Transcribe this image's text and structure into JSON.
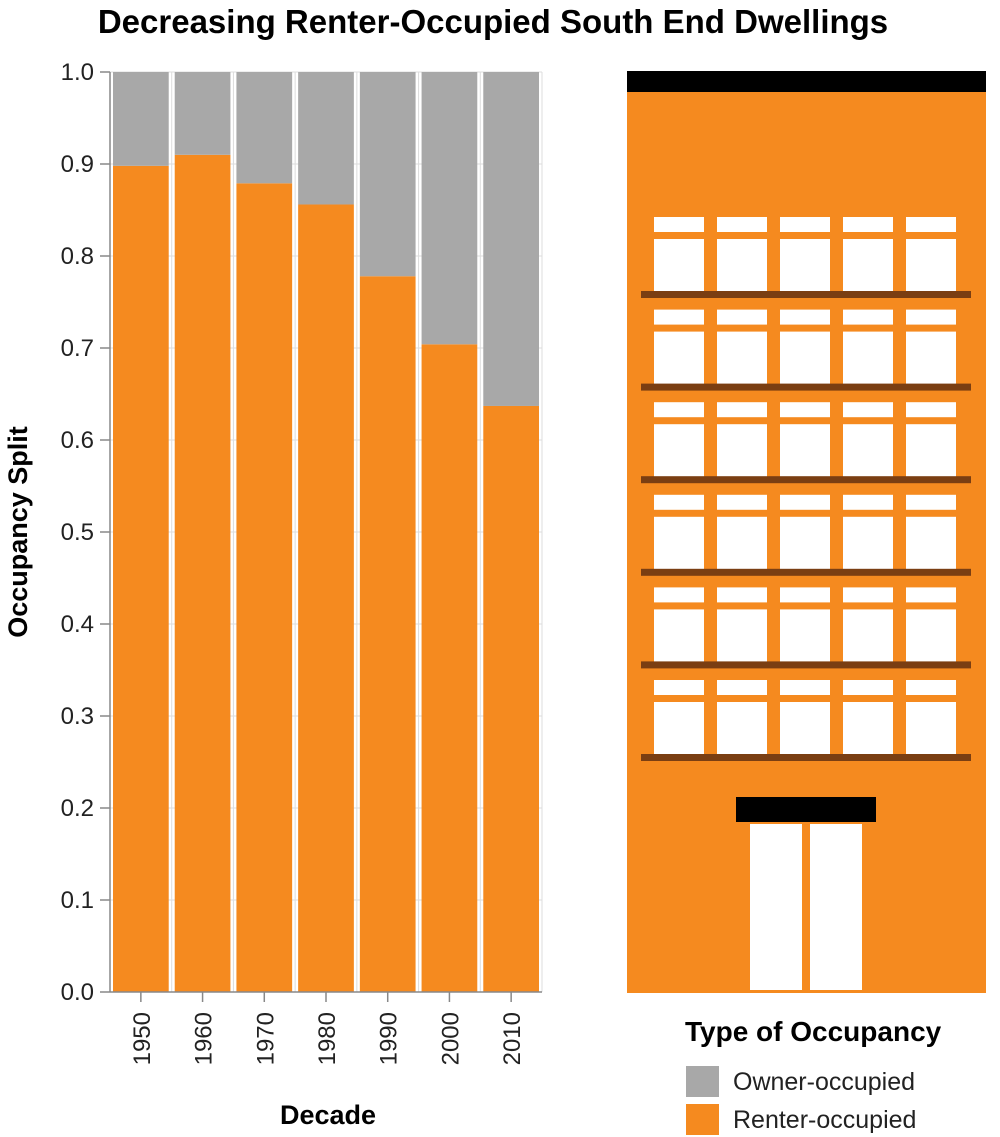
{
  "chart_data": {
    "type": "bar",
    "stacked": true,
    "title": "Decreasing Renter-Occupied South End Dwellings",
    "xlabel": "Decade",
    "ylabel": "Occupancy Split",
    "ylim": [
      0,
      1
    ],
    "yticks": [
      "0.0",
      "0.1",
      "0.2",
      "0.3",
      "0.4",
      "0.5",
      "0.6",
      "0.7",
      "0.8",
      "0.9",
      "1.0"
    ],
    "categories": [
      "1950",
      "1960",
      "1970",
      "1980",
      "1990",
      "2000",
      "2010"
    ],
    "series": [
      {
        "name": "Renter-occupied",
        "color": "#f58a1f",
        "values": [
          0.898,
          0.91,
          0.879,
          0.856,
          0.778,
          0.704,
          0.637
        ]
      },
      {
        "name": "Owner-occupied",
        "color": "#a8a8a8",
        "values": [
          0.102,
          0.09,
          0.121,
          0.144,
          0.222,
          0.296,
          0.363
        ]
      }
    ],
    "grid": true,
    "legend": {
      "title": "Type of Occupancy",
      "position": "bottom-right",
      "items": [
        {
          "label": "Owner-occupied",
          "color": "#a8a8a8"
        },
        {
          "label": "Renter-occupied",
          "color": "#f58a1f"
        }
      ]
    }
  },
  "illustration": {
    "subject": "building-icon",
    "colors": {
      "facade": "#f58a1f",
      "roof": "#000000",
      "ledge": "#7a3e12",
      "window": "#ffffff"
    }
  }
}
